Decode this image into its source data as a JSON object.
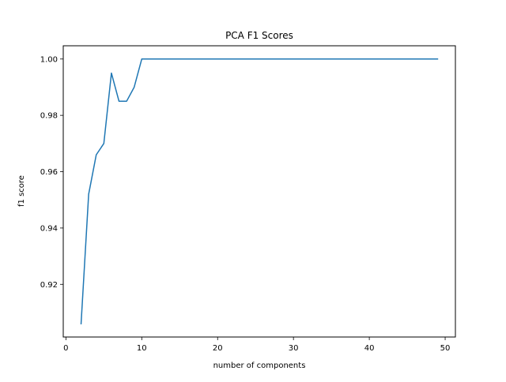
{
  "chart_data": {
    "type": "line",
    "title": "PCA F1 Scores",
    "xlabel": "number of components",
    "ylabel": "f1 score",
    "xlim": [
      -0.35,
      51.35
    ],
    "ylim": [
      0.9013,
      1.0047
    ],
    "xticks": [
      0,
      10,
      20,
      30,
      40,
      50
    ],
    "xtick_labels": [
      "0",
      "10",
      "20",
      "30",
      "40",
      "50"
    ],
    "yticks": [
      0.92,
      0.94,
      0.96,
      0.98,
      1.0
    ],
    "ytick_labels": [
      "0.92",
      "0.94",
      "0.96",
      "0.98",
      "1.00"
    ],
    "grid": false,
    "series": [
      {
        "color": "#1f77b4",
        "x": [
          2,
          3,
          4,
          5,
          6,
          7,
          8,
          9,
          10,
          11,
          12,
          13,
          14,
          15,
          16,
          17,
          18,
          19,
          20,
          21,
          22,
          23,
          24,
          25,
          26,
          27,
          28,
          29,
          30,
          31,
          32,
          33,
          34,
          35,
          36,
          37,
          38,
          39,
          40,
          41,
          42,
          43,
          44,
          45,
          46,
          47,
          48,
          49
        ],
        "y": [
          0.906,
          0.952,
          0.966,
          0.97,
          0.995,
          0.985,
          0.985,
          0.99,
          1.0,
          1.0,
          1.0,
          1.0,
          1.0,
          1.0,
          1.0,
          1.0,
          1.0,
          1.0,
          1.0,
          1.0,
          1.0,
          1.0,
          1.0,
          1.0,
          1.0,
          1.0,
          1.0,
          1.0,
          1.0,
          1.0,
          1.0,
          1.0,
          1.0,
          1.0,
          1.0,
          1.0,
          1.0,
          1.0,
          1.0,
          1.0,
          1.0,
          1.0,
          1.0,
          1.0,
          1.0,
          1.0,
          1.0,
          1.0
        ]
      }
    ]
  }
}
